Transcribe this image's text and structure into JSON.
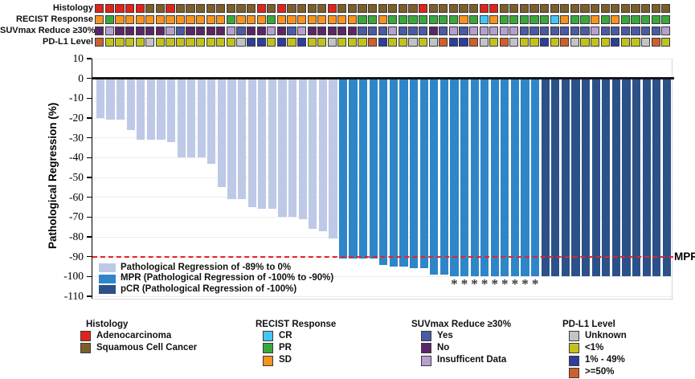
{
  "colors": {
    "adenocarcinoma": "#E2231A",
    "squamous": "#7D5E29",
    "cr": "#45C5F2",
    "pr": "#39A83C",
    "sd": "#F6921E",
    "suv_yes": "#4A5AA5",
    "suv_no": "#5B2667",
    "suv_insufficient": "#B59FCF",
    "pdl1_unknown": "#C3C3C3",
    "pdl1_lt1": "#C2C21F",
    "pdl1_1to49": "#2E3E9B",
    "pdl1_ge50": "#CE602B",
    "bar_reg": "#BDC9E6",
    "bar_mpr": "#2E86C8",
    "bar_pcr": "#2B5188",
    "reference_line": "#EC2024",
    "zero_line": "#141414",
    "gridline": "#ECECEF"
  },
  "tracks": {
    "rows": [
      {
        "label": "Histology",
        "key_map": {
          "R": "adenocarcinoma",
          "B": "squamous"
        },
        "cells": "RRRRRBBRBBBBBBBBRBRBBBBRBBBBBBBBRBBBBBRRBBBBBBBBBBBBBBBBB"
      },
      {
        "label": "RECIST Response",
        "key_map": {
          "C": "cr",
          "P": "pr",
          "S": "sd"
        },
        "cells": "SPSSSSSSSSSSSPSSSPSSSSSSSSPPSPPPPPPPSPCSPPPPPCSPPSPSPPPPP"
      },
      {
        "label": "SUVmax Reduce ≥30%",
        "key_map": {
          "Y": "suv_yes",
          "N": "suv_no",
          "I": "suv_insufficient"
        },
        "cells": "NINNNNNIYNNNNIYNNINYINNNNNYYYIYYYNYIYIIIIIYYYYYYYIYYYYYYI"
      },
      {
        "label": "PD-L1 Level",
        "key_map": {
          "U": "pdl1_unknown",
          "L": "pdl1_lt1",
          "M": "pdl1_1to49",
          "H": "pdl1_ge50"
        },
        "cells": "HLLLLULLLLLLLLUMMLMLMLLULLLHMLLULUHMMHULHULLMLHULLLMLLUHL"
      }
    ]
  },
  "chart_data": {
    "type": "bar",
    "title": "",
    "xlabel": "",
    "ylabel": "Pathological Regression (%)",
    "ylim": [
      -110,
      10
    ],
    "yticks": [
      10,
      0,
      -10,
      -20,
      -30,
      -40,
      -50,
      -60,
      -70,
      -80,
      -90,
      -100,
      -110
    ],
    "grid": "horizontal",
    "values": [
      -20,
      -21,
      -21,
      -26,
      -31,
      -31,
      -31,
      -32,
      -40,
      -40,
      -40,
      -43,
      -55,
      -61,
      -61,
      -65,
      -66,
      -66,
      -70,
      -70,
      -71,
      -76,
      -77,
      -81,
      -91,
      -91,
      -91,
      -91,
      -94,
      -95,
      -95,
      -96,
      -96,
      -99,
      -99,
      -100,
      -100,
      -100,
      -100,
      -100,
      -100,
      -100,
      -100,
      -100,
      -100,
      -100,
      -100,
      -100,
      -100,
      -100,
      -100,
      -100,
      -100,
      -100,
      -100,
      -100,
      -100
    ],
    "segments": [
      {
        "category": "bar_reg",
        "count": 24
      },
      {
        "category": "bar_mpr",
        "count": 20
      },
      {
        "category": "bar_pcr",
        "count": 13
      }
    ],
    "asterisk_bars": [
      36,
      37,
      38,
      39,
      40,
      41,
      42,
      43,
      44
    ],
    "reference_line": {
      "value": -90,
      "label": "MPR"
    },
    "legend": [
      {
        "color_key": "bar_reg",
        "label": "Pathological Regression of -89% to 0%"
      },
      {
        "color_key": "bar_mpr",
        "label": "MPR (Pathological Regression of -100% to -90%)"
      },
      {
        "color_key": "bar_pcr",
        "label": "pCR (Pathological Regression of -100%)"
      }
    ]
  },
  "bottom_legend": {
    "groups": [
      {
        "title": "Histology",
        "items": [
          {
            "color_key": "adenocarcinoma",
            "label": "Adenocarcinoma"
          },
          {
            "color_key": "squamous",
            "label": "Squamous Cell Cancer"
          }
        ]
      },
      {
        "title": "RECIST Response",
        "items": [
          {
            "color_key": "cr",
            "label": "CR"
          },
          {
            "color_key": "pr",
            "label": "PR"
          },
          {
            "color_key": "sd",
            "label": "SD"
          }
        ]
      },
      {
        "title": "SUVmax Reduce ≥30%",
        "items": [
          {
            "color_key": "suv_yes",
            "label": "Yes"
          },
          {
            "color_key": "suv_no",
            "label": "No"
          },
          {
            "color_key": "suv_insufficient",
            "label": "Insufficent Data"
          }
        ]
      },
      {
        "title": "PD-L1 Level",
        "items": [
          {
            "color_key": "pdl1_unknown",
            "label": "Unknown"
          },
          {
            "color_key": "pdl1_lt1",
            "label": "<1%"
          },
          {
            "color_key": "pdl1_1to49",
            "label": "1% - 49%"
          },
          {
            "color_key": "pdl1_ge50",
            "label": ">=50%"
          }
        ]
      }
    ]
  }
}
